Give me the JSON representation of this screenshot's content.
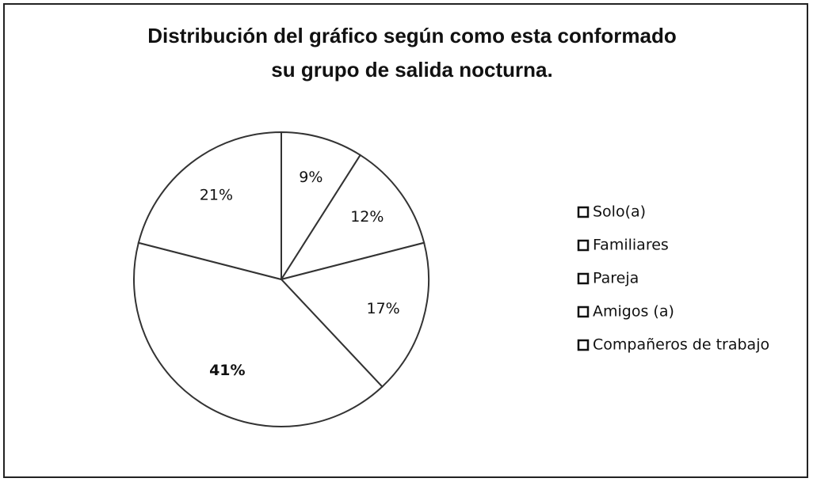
{
  "chart_data": {
    "type": "pie",
    "title": [
      "Distribución del gráfico según como esta conformado",
      "su grupo de salida  nocturna."
    ],
    "categories": [
      "Solo(a)",
      "Familiares",
      "Pareja",
      "Amigos (a)",
      "Compañeros de trabajo"
    ],
    "values": [
      9,
      12,
      17,
      41,
      21
    ],
    "value_labels": [
      "9%",
      "12%",
      "17%",
      "41%",
      "21%"
    ],
    "colors": [
      "#ffffff",
      "#ffffff",
      "#ffffff",
      "#ffffff",
      "#ffffff"
    ],
    "legend": "right"
  }
}
